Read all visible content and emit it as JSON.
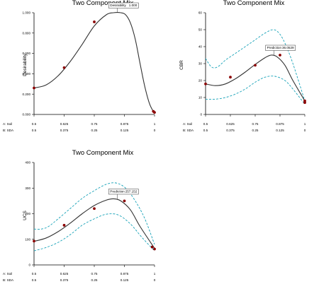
{
  "chart_data": [
    {
      "id": "desirability",
      "type": "line",
      "title": "Two Component Mix",
      "ylabel": "Desirability",
      "ylim": [
        0,
        1.0
      ],
      "yticks": [
        "0.000",
        "0.200",
        "0.400",
        "0.600",
        "0.800",
        "1.000"
      ],
      "xlim": [
        0.5,
        1
      ],
      "x_ticks": {
        "a_label": "A: Soil",
        "b_label": "B: SDA",
        "a_values": [
          "0.5",
          "0.625",
          "0.75",
          "0.875",
          "1"
        ],
        "b_values": [
          "0.5",
          "0.375",
          "0.25",
          "0.125",
          "0"
        ]
      },
      "curve": {
        "x": [
          0.5,
          0.55,
          0.6,
          0.65,
          0.7,
          0.75,
          0.8,
          0.83,
          0.86,
          0.88,
          0.9,
          0.92,
          0.94,
          0.96,
          0.98,
          1.0
        ],
        "y": [
          0.26,
          0.29,
          0.38,
          0.52,
          0.69,
          0.87,
          0.98,
          1.0,
          1.0,
          0.98,
          0.9,
          0.74,
          0.5,
          0.27,
          0.1,
          0.01
        ]
      },
      "points": {
        "x": [
          0.5,
          0.625,
          0.75,
          1.0,
          0.995
        ],
        "y": [
          0.26,
          0.46,
          0.91,
          0.02,
          0.03
        ]
      },
      "callout": {
        "label": "Desirability",
        "value": "1.000",
        "x": 0.845,
        "y": 1.0
      },
      "has_bands": false
    },
    {
      "id": "cbr",
      "type": "line",
      "title": "Two Component Mix",
      "ylabel": "CBR",
      "ylim": [
        0,
        60
      ],
      "yticks": [
        "0",
        "10",
        "20",
        "30",
        "40",
        "50",
        "60"
      ],
      "xlim": [
        0.5,
        1
      ],
      "x_ticks": {
        "a_label": "A: Soil",
        "b_label": "B: SDA",
        "a_values": [
          "0.5",
          "0.625",
          "0.75",
          "0.875",
          "1"
        ],
        "b_values": [
          "0.5",
          "0.375",
          "0.25",
          "0.125",
          "0"
        ]
      },
      "curve": {
        "x": [
          0.5,
          0.55,
          0.6,
          0.65,
          0.7,
          0.75,
          0.8,
          0.83,
          0.86,
          0.9,
          0.94,
          1.0
        ],
        "y": [
          18,
          17,
          18,
          21,
          25,
          29.5,
          33.5,
          35,
          34,
          29,
          20,
          8
        ]
      },
      "upper": {
        "x": [
          0.5,
          0.53,
          0.56,
          0.6,
          0.65,
          0.7,
          0.75,
          0.8,
          0.84,
          0.87,
          0.9,
          0.94,
          1.0
        ],
        "y": [
          33,
          28,
          28,
          32,
          36,
          40,
          44,
          48,
          50,
          48,
          42,
          30,
          8
        ]
      },
      "lower": {
        "x": [
          0.5,
          0.55,
          0.6,
          0.65,
          0.7,
          0.75,
          0.8,
          0.85,
          0.9,
          0.94,
          1.0
        ],
        "y": [
          9,
          9,
          10,
          12,
          15,
          19,
          22,
          22.5,
          20,
          15,
          6
        ]
      },
      "points": {
        "x": [
          0.5,
          0.625,
          0.75,
          0.875,
          1.0,
          1.0
        ],
        "y": [
          18,
          22,
          29,
          35,
          7,
          8
        ]
      },
      "callout": {
        "label": "Prediction",
        "value": "36.0529",
        "x": 0.845,
        "y": 35
      },
      "has_bands": true
    },
    {
      "id": "ucs",
      "type": "line",
      "title": "Two Component Mix",
      "ylabel": "UCS",
      "ylim": [
        0,
        400
      ],
      "yticks": [
        "0",
        "100",
        "200",
        "300",
        "400"
      ],
      "xlim": [
        0.5,
        1
      ],
      "x_ticks": {
        "a_label": "A: Soil",
        "b_label": "B: SDA",
        "a_values": [
          "0.5",
          "0.625",
          "0.75",
          "0.875",
          "1"
        ],
        "b_values": [
          "0.5",
          "0.375",
          "0.25",
          "0.125",
          "0"
        ]
      },
      "curve": {
        "x": [
          0.5,
          0.55,
          0.6,
          0.65,
          0.7,
          0.75,
          0.8,
          0.83,
          0.86,
          0.9,
          0.94,
          1.0
        ],
        "y": [
          92,
          105,
          130,
          163,
          200,
          232,
          253,
          258,
          250,
          215,
          150,
          65
        ]
      },
      "upper": {
        "x": [
          0.5,
          0.53,
          0.56,
          0.6,
          0.65,
          0.7,
          0.75,
          0.8,
          0.84,
          0.88,
          0.92,
          0.96,
          1.0
        ],
        "y": [
          140,
          140,
          150,
          180,
          220,
          260,
          290,
          315,
          320,
          300,
          250,
          180,
          80
        ]
      },
      "lower": {
        "x": [
          0.5,
          0.55,
          0.6,
          0.65,
          0.7,
          0.75,
          0.8,
          0.85,
          0.9,
          0.95,
          1.0
        ],
        "y": [
          55,
          68,
          88,
          118,
          155,
          180,
          198,
          195,
          160,
          105,
          55
        ]
      },
      "points": {
        "x": [
          0.5,
          0.625,
          0.75,
          0.875,
          1.0,
          0.99
        ],
        "y": [
          93,
          155,
          220,
          250,
          62,
          70
        ]
      },
      "callout": {
        "label": "Prediction",
        "value": "257.152",
        "x": 0.845,
        "y": 258
      },
      "has_bands": true
    }
  ],
  "colors": {
    "curve": "#333333",
    "band": "#17a2b8",
    "point": "#8b0000",
    "axis": "#000000"
  }
}
